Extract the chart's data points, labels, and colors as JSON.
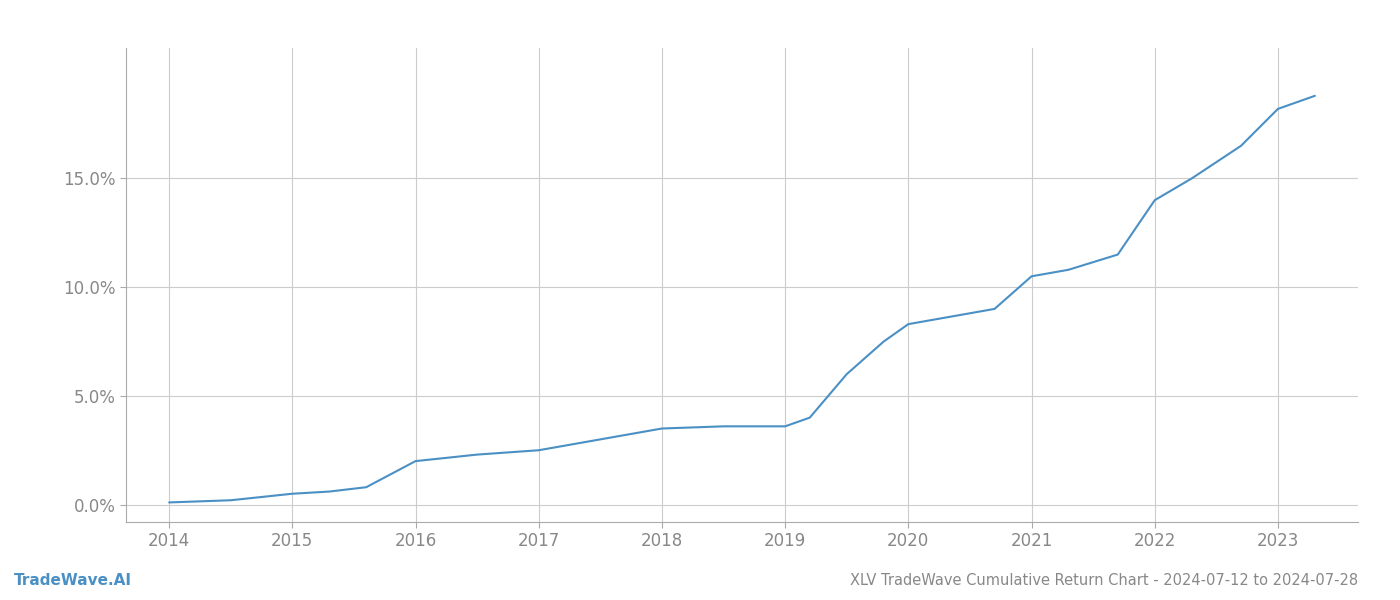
{
  "title_bottom": "XLV TradeWave Cumulative Return Chart - 2024-07-12 to 2024-07-28",
  "watermark": "TradeWave.AI",
  "line_color": "#4a90c4",
  "background_color": "#ffffff",
  "grid_color": "#cccccc",
  "x_values": [
    2014,
    2014.5,
    2015,
    2015.3,
    2015.6,
    2016,
    2016.5,
    2017,
    2017.5,
    2018,
    2018.5,
    2019,
    2019.2,
    2019.5,
    2019.8,
    2020,
    2020.3,
    2020.7,
    2021,
    2021.3,
    2021.7,
    2022,
    2022.3,
    2022.7,
    2023,
    2023.3
  ],
  "y_values": [
    0.001,
    0.002,
    0.005,
    0.006,
    0.008,
    0.02,
    0.023,
    0.025,
    0.03,
    0.035,
    0.036,
    0.036,
    0.04,
    0.06,
    0.075,
    0.083,
    0.086,
    0.09,
    0.105,
    0.108,
    0.115,
    0.14,
    0.15,
    0.165,
    0.182,
    0.188
  ],
  "yticks": [
    0.0,
    0.05,
    0.1,
    0.15
  ],
  "ytick_labels": [
    "0.0%",
    "5.0%",
    "10.0%",
    "15.0%"
  ],
  "xticks": [
    2014,
    2015,
    2016,
    2017,
    2018,
    2019,
    2020,
    2021,
    2022,
    2023
  ],
  "xlim": [
    2013.65,
    2023.65
  ],
  "ylim": [
    -0.008,
    0.21
  ],
  "tick_color": "#888888",
  "title_fontsize": 10.5,
  "watermark_fontsize": 11,
  "tick_fontsize": 12,
  "line_width": 1.5
}
